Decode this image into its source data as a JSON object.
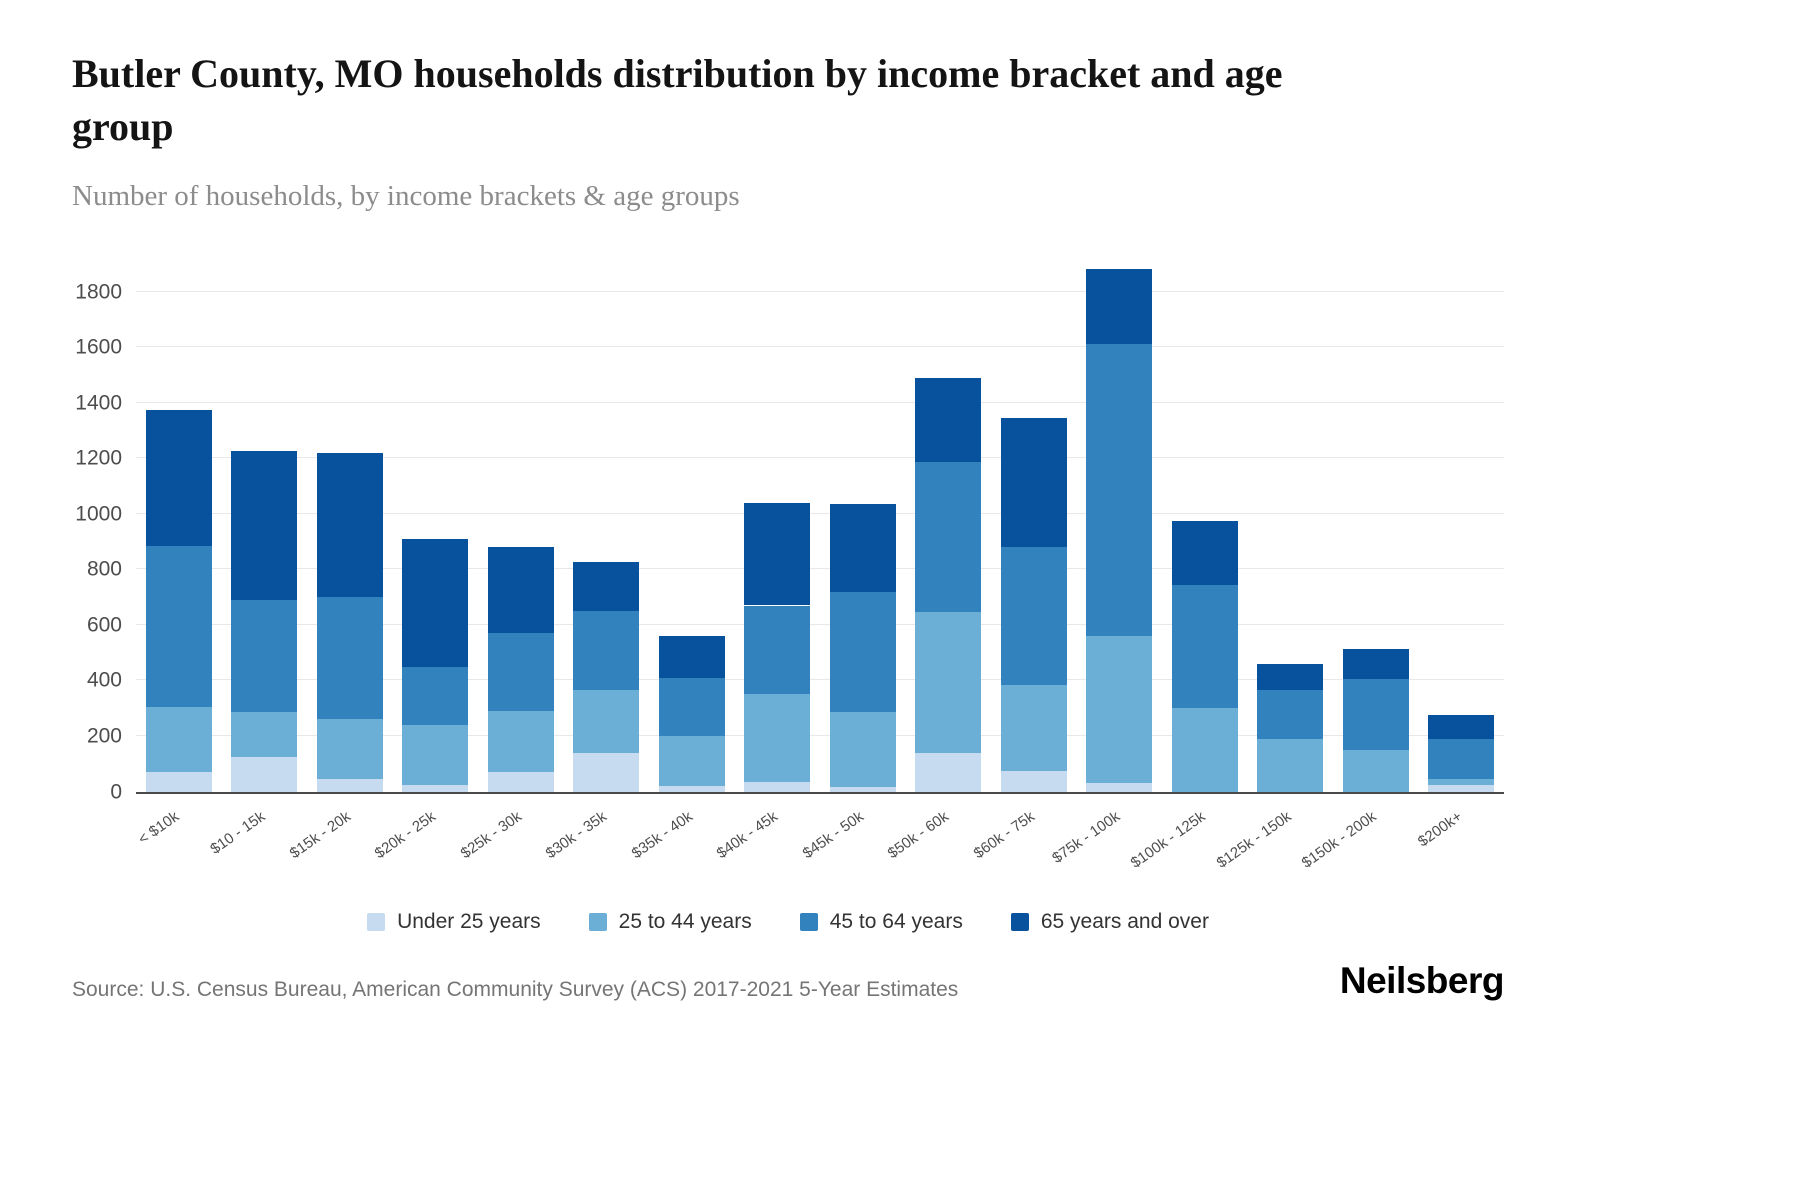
{
  "footer": {
    "source": "Source: U.S. Census Bureau, American Community Survey (ACS) 2017-2021 5-Year Estimates",
    "logo": "Neilsberg"
  },
  "chart_data": {
    "type": "bar",
    "stacked": true,
    "title": "Butler County, MO households distribution by income bracket and age group",
    "subtitle": "Number of households, by income brackets & age groups",
    "xlabel": "",
    "ylabel": "",
    "ylim": [
      0,
      1800
    ],
    "yticks": [
      0,
      200,
      400,
      600,
      800,
      1000,
      1200,
      1400,
      1600,
      1800
    ],
    "grid": true,
    "legend_position": "bottom",
    "categories": [
      "< $10k",
      "$10 - 15k",
      "$15k - 20k",
      "$20k - 25k",
      "$25k - 30k",
      "$30k - 35k",
      "$35k - 40k",
      "$40k - 45k",
      "$45k - 50k",
      "$50k - 60k",
      "$60k - 75k",
      "$75k - 100k",
      "$100k - 125k",
      "$125k - 150k",
      "$150k - 200k",
      "$200k+"
    ],
    "series": [
      {
        "name": "Under 25 years",
        "color": "#c6dbef",
        "values": [
          70,
          125,
          45,
          25,
          70,
          140,
          20,
          35,
          15,
          140,
          75,
          30,
          0,
          0,
          0,
          25
        ]
      },
      {
        "name": "25 to 44 years",
        "color": "#6baed6",
        "values": [
          235,
          160,
          215,
          215,
          220,
          225,
          180,
          315,
          270,
          505,
          310,
          530,
          300,
          190,
          150,
          20
        ]
      },
      {
        "name": "45 to 64 years",
        "color": "#3182bd",
        "values": [
          580,
          405,
          440,
          210,
          280,
          285,
          210,
          320,
          435,
          540,
          495,
          1050,
          445,
          175,
          255,
          145
        ]
      },
      {
        "name": "65 years and over",
        "color": "#08519c",
        "values": [
          490,
          535,
          520,
          460,
          310,
          175,
          150,
          370,
          315,
          305,
          465,
          270,
          230,
          95,
          110,
          85
        ]
      }
    ],
    "totals": [
      1375,
      1225,
      1220,
      910,
      880,
      825,
      560,
      1040,
      1035,
      1490,
      1345,
      1880,
      975,
      460,
      515,
      275
    ]
  }
}
